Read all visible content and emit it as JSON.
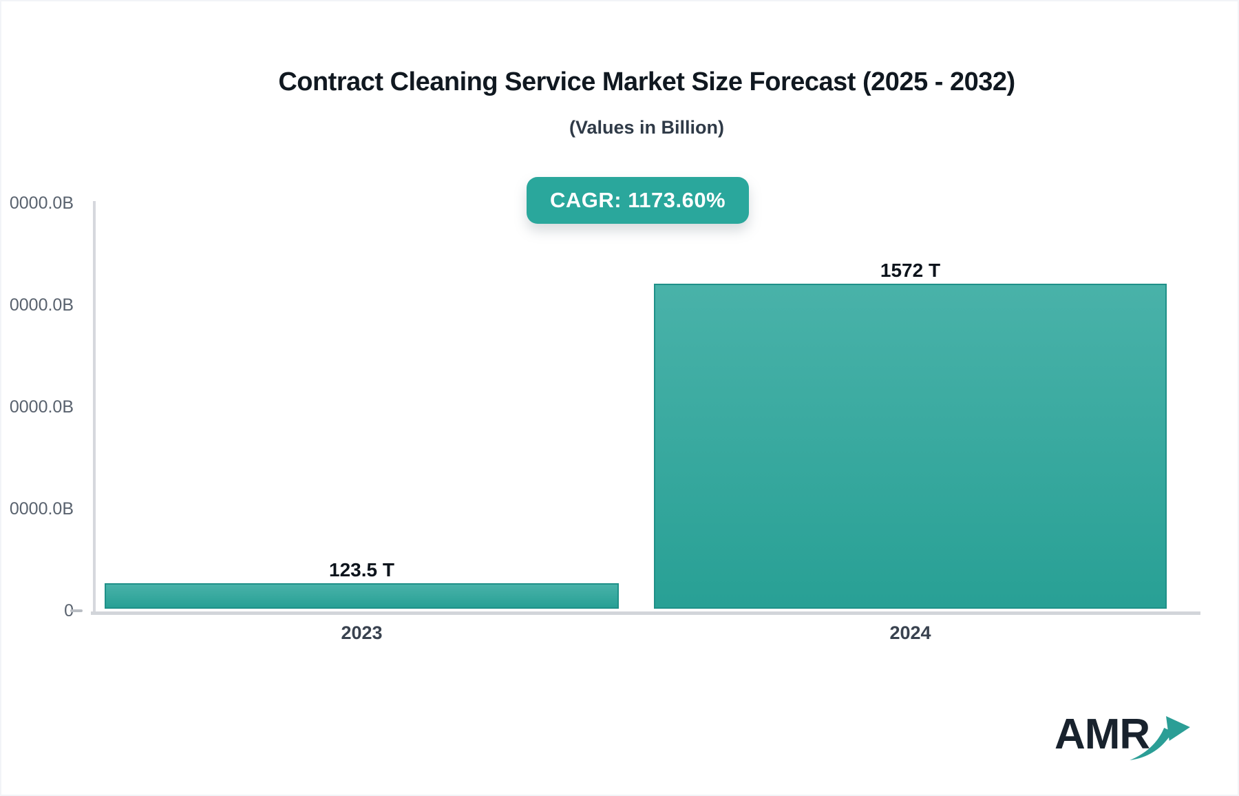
{
  "header": {
    "title": "Contract Cleaning Service Market Size Forecast (2025 - 2032)",
    "subtitle": "(Values in Billion)"
  },
  "badge": {
    "label": "CAGR: 1173.60%"
  },
  "chart_data": {
    "type": "bar",
    "title": "Contract Cleaning Service Market Size Forecast (2025 - 2032)",
    "subtitle": "(Values in Billion)",
    "cagr_label": "CAGR: 1173.60%",
    "categories": [
      "2023",
      "2024"
    ],
    "values": [
      123.5,
      1572
    ],
    "unit": "T",
    "value_labels": [
      "123.5 T",
      "1572 T"
    ],
    "y_axis": {
      "tick_labels": [
        "0000.0B",
        "0000.0B",
        "0000.0B",
        "0000.0B",
        "0"
      ],
      "zero_tick_dash": true
    },
    "legend": "none",
    "grid": "off"
  },
  "logo": {
    "text": "AMR",
    "icon": "trend-up-arrow-icon"
  },
  "colors": {
    "bar_fill_top": "#49b2a9",
    "bar_fill_bottom": "#28a095",
    "bar_border": "#1f9088",
    "badge_bg": "#2aa79c",
    "badge_text": "#ffffff",
    "axis_line": "#d3d6db",
    "tick_text": "#59626e",
    "title_text": "#101820",
    "subtitle_text": "#2f3a47",
    "value_label_text": "#0d141c",
    "category_text": "#39424f",
    "logo_text": "#18222d",
    "logo_arrow": "#2b9e96"
  }
}
